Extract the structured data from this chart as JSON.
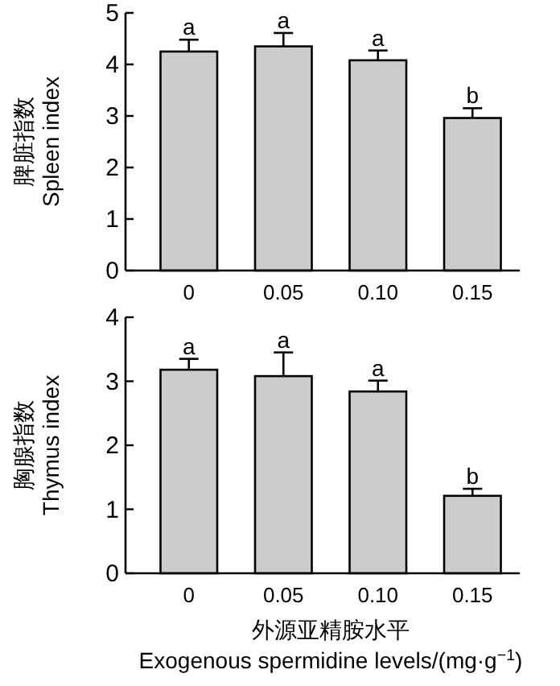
{
  "chart_data": [
    {
      "type": "bar",
      "ylabel": "脾脏指数\nSpleen index",
      "categories": [
        "0",
        "0.05",
        "0.10",
        "0.15"
      ],
      "values": [
        4.25,
        4.35,
        4.08,
        2.96
      ],
      "errors": [
        [
          4.25,
          4.48
        ],
        [
          4.35,
          4.61
        ],
        [
          4.08,
          4.27
        ],
        [
          2.96,
          3.15
        ]
      ],
      "color": "#cccccc",
      "ylim": [
        0,
        5
      ],
      "yticks": [
        0,
        1,
        2,
        3,
        4,
        5
      ],
      "annotations": [
        "a",
        "a",
        "a",
        "b"
      ]
    },
    {
      "type": "bar",
      "ylabel": "胸腺指数\nThymus index",
      "xlabel": "外源亚精胺水平\nExogenous spermidine levels/(mg·g$^{−1}$)",
      "categories": [
        "0",
        "0.05",
        "0.10",
        "0.15"
      ],
      "values": [
        3.18,
        3.08,
        2.84,
        1.21
      ],
      "errors": [
        [
          3.18,
          3.35
        ],
        [
          3.08,
          3.45
        ],
        [
          2.84,
          3.01
        ],
        [
          1.21,
          1.32
        ]
      ],
      "color": "#cccccc",
      "ylim": [
        0,
        4
      ],
      "yticks": [
        0,
        1,
        2,
        3,
        4
      ],
      "annotations": [
        "a",
        "a",
        "a",
        "b"
      ]
    }
  ]
}
